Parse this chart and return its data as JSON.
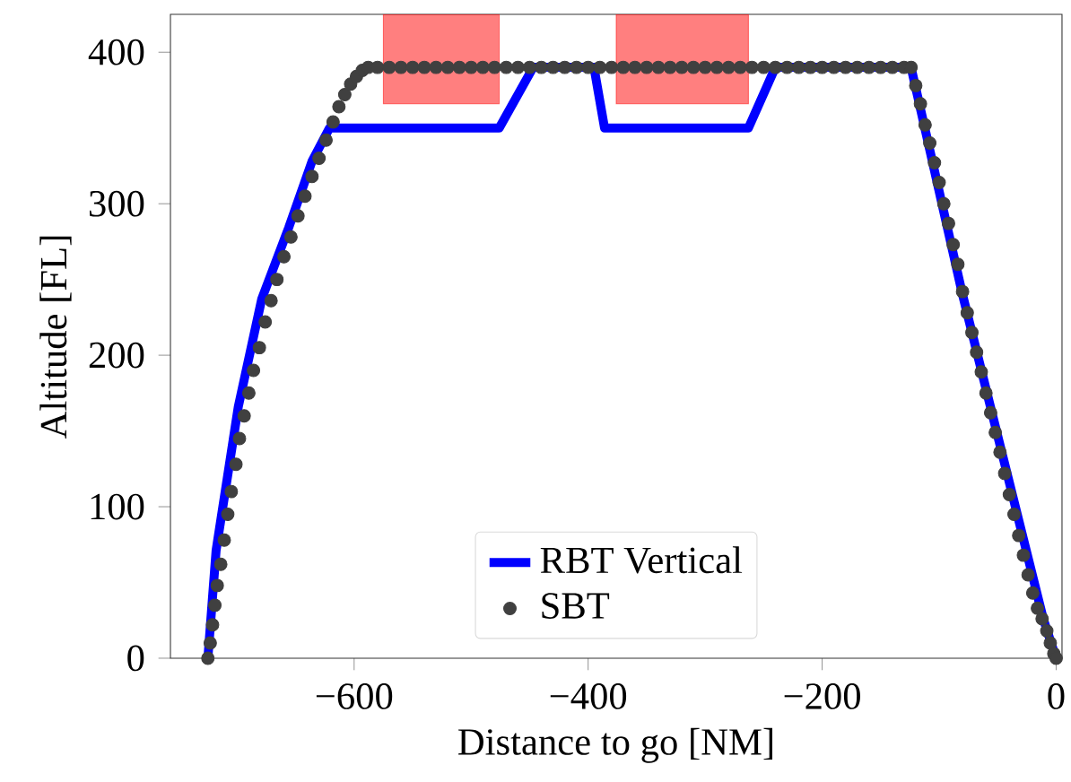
{
  "chart_data": {
    "type": "line",
    "xlabel": "Distance to go [NM]",
    "ylabel": "Altitude [FL]",
    "xlim": [
      -757,
      5
    ],
    "ylim": [
      0,
      425
    ],
    "xticks": [
      {
        "value": -600,
        "label": "−600"
      },
      {
        "value": -400,
        "label": "−400"
      },
      {
        "value": -200,
        "label": "−200"
      },
      0
    ],
    "yticks": [
      0,
      100,
      200,
      300,
      400
    ],
    "legend": "bottom",
    "grid": false,
    "series": [
      {
        "name": "RBT Vertical",
        "color": "#0000ff",
        "line_style": "solid",
        "marker": "none",
        "x": [
          -725,
          -718,
          -699,
          -679,
          -656,
          -636,
          -621,
          -476,
          -447,
          -395,
          -386,
          -263,
          -240,
          -124,
          -80,
          -11,
          0
        ],
        "values": [
          0,
          71,
          166,
          237,
          284,
          328,
          350,
          350,
          390,
          390,
          350,
          350,
          390,
          390,
          240,
          26,
          0
        ]
      },
      {
        "name": "SBT",
        "type": "scatter",
        "color": "#404040",
        "marker": "circle",
        "x": [
          -725,
          -723,
          -721,
          -719,
          -717,
          -714,
          -711,
          -708,
          -705,
          -701,
          -698,
          -694,
          -690,
          -686,
          -681,
          -676,
          -671,
          -666,
          -660,
          -654,
          -648,
          -642,
          -636,
          -630,
          -624,
          -618,
          -613,
          -608,
          -603,
          -598,
          -593,
          -588,
          -580,
          -570,
          -560,
          -550,
          -540,
          -530,
          -520,
          -510,
          -500,
          -490,
          -480,
          -470,
          -460,
          -450,
          -440,
          -430,
          -420,
          -410,
          -400,
          -390,
          -380,
          -370,
          -360,
          -350,
          -340,
          -330,
          -320,
          -310,
          -300,
          -290,
          -280,
          -270,
          -260,
          -250,
          -240,
          -230,
          -220,
          -210,
          -200,
          -190,
          -180,
          -170,
          -160,
          -150,
          -140,
          -130,
          -124,
          -120,
          -116,
          -112,
          -108,
          -104,
          -100,
          -96,
          -92,
          -88,
          -84,
          -80,
          -76,
          -72,
          -68,
          -64,
          -60,
          -56,
          -52,
          -48,
          -44,
          -40,
          -36,
          -32,
          -28,
          -24,
          -20,
          -16,
          -12,
          -8,
          -5,
          -2,
          0
        ],
        "values": [
          0,
          10,
          22,
          35,
          48,
          62,
          78,
          95,
          110,
          128,
          145,
          160,
          175,
          190,
          205,
          222,
          236,
          250,
          265,
          278,
          292,
          305,
          318,
          330,
          342,
          354,
          364,
          372,
          379,
          384,
          388,
          390,
          390,
          390,
          390,
          390,
          390,
          390,
          390,
          390,
          390,
          390,
          390,
          390,
          390,
          390,
          390,
          390,
          390,
          390,
          390,
          390,
          390,
          390,
          390,
          390,
          390,
          390,
          390,
          390,
          390,
          390,
          390,
          390,
          390,
          390,
          390,
          390,
          390,
          390,
          390,
          390,
          390,
          390,
          390,
          390,
          390,
          390,
          390,
          378,
          366,
          352,
          340,
          327,
          314,
          300,
          287,
          273,
          260,
          242,
          228,
          215,
          202,
          189,
          175,
          162,
          149,
          136,
          122,
          108,
          95,
          81,
          68,
          55,
          43,
          33,
          26,
          18,
          10,
          3,
          0
        ]
      },
      {
        "type": "area",
        "color": "#ff0000",
        "x": [
          -575,
          -476
        ],
        "lower": [
          366,
          366
        ],
        "upper": [
          425,
          425
        ],
        "values": [
          null,
          null
        ]
      },
      {
        "type": "area",
        "color": "#ff0000",
        "x": [
          -376,
          -263
        ],
        "lower": [
          366,
          366
        ],
        "upper": [
          425,
          425
        ],
        "values": [
          null,
          null
        ]
      }
    ]
  }
}
